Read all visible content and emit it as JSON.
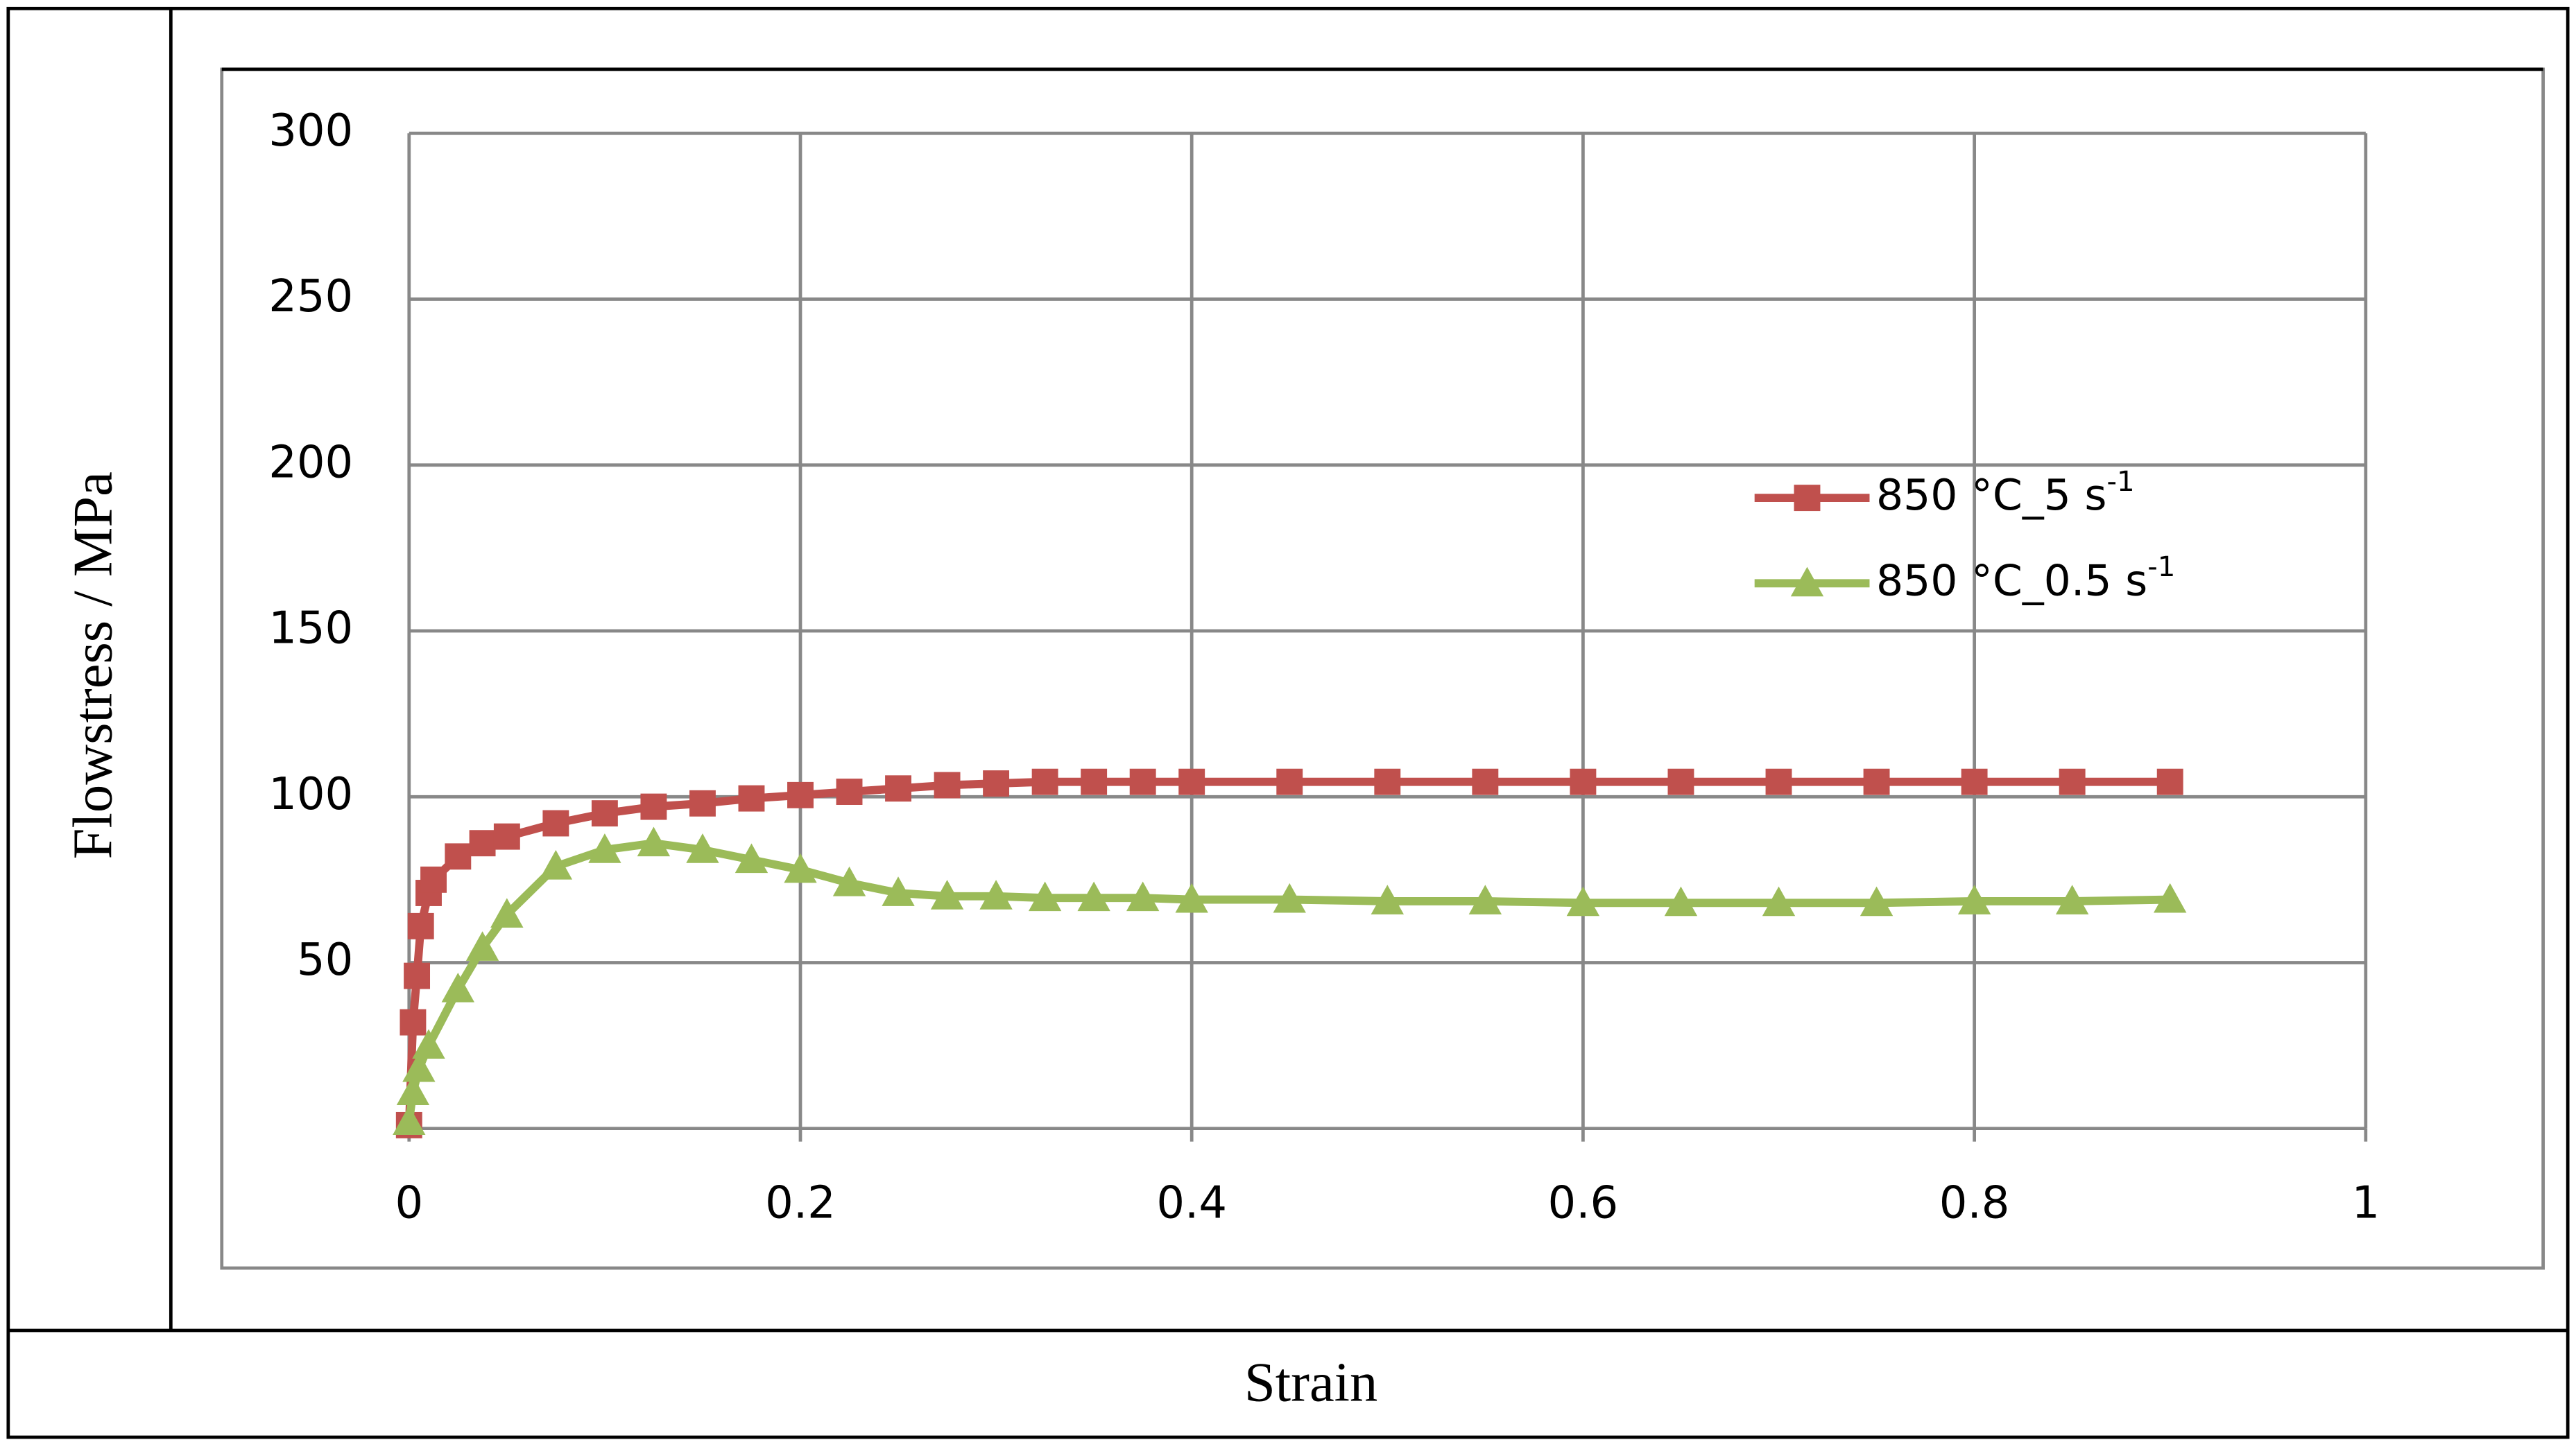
{
  "chart_data": {
    "type": "line",
    "x_label": "Strain",
    "y_label": "Flowstress / MPa",
    "xlim": [
      0,
      1
    ],
    "xticks": [
      0,
      0.2,
      0.4,
      0.6,
      0.8,
      1
    ],
    "ylim": [
      0,
      300
    ],
    "yticks": [
      50,
      100,
      150,
      200,
      250,
      300
    ],
    "grid": true,
    "series": [
      {
        "name": "850 °C_5 s",
        "name_superscript": "-1",
        "color": "#c0504d",
        "marker": "square",
        "x": [
          0,
          0.002,
          0.004,
          0.006,
          0.01,
          0.0125,
          0.025,
          0.0375,
          0.05,
          0.075,
          0.1,
          0.125,
          0.15,
          0.175,
          0.2,
          0.225,
          0.25,
          0.275,
          0.3,
          0.325,
          0.35,
          0.375,
          0.4,
          0.45,
          0.5,
          0.55,
          0.6,
          0.65,
          0.7,
          0.75,
          0.8,
          0.85,
          0.9
        ],
        "values": [
          1,
          32,
          46,
          61,
          71,
          75,
          82,
          86,
          88,
          92,
          95,
          97,
          98,
          99.5,
          100.5,
          101.5,
          102.5,
          103.5,
          104,
          104.5,
          104.5,
          104.5,
          104.5,
          104.5,
          104.5,
          104.5,
          104.5,
          104.5,
          104.5,
          104.5,
          104.5,
          104.5,
          104.5
        ]
      },
      {
        "name": "850 °C_0.5 s",
        "name_superscript": "-1",
        "color": "#9bbb59",
        "marker": "triangle",
        "x": [
          0,
          0.002,
          0.005,
          0.01,
          0.025,
          0.0375,
          0.05,
          0.075,
          0.1,
          0.125,
          0.15,
          0.175,
          0.2,
          0.225,
          0.25,
          0.275,
          0.3,
          0.325,
          0.35,
          0.375,
          0.4,
          0.45,
          0.5,
          0.55,
          0.6,
          0.65,
          0.7,
          0.75,
          0.8,
          0.85,
          0.9
        ],
        "values": [
          2,
          11,
          18,
          25,
          42,
          54.5,
          64.5,
          79,
          84,
          86,
          84,
          81,
          78,
          74,
          71,
          70,
          70,
          69.5,
          69.5,
          69.5,
          69,
          69,
          68.5,
          68.5,
          68,
          68,
          68,
          68,
          68.5,
          68.5,
          69
        ]
      }
    ]
  }
}
